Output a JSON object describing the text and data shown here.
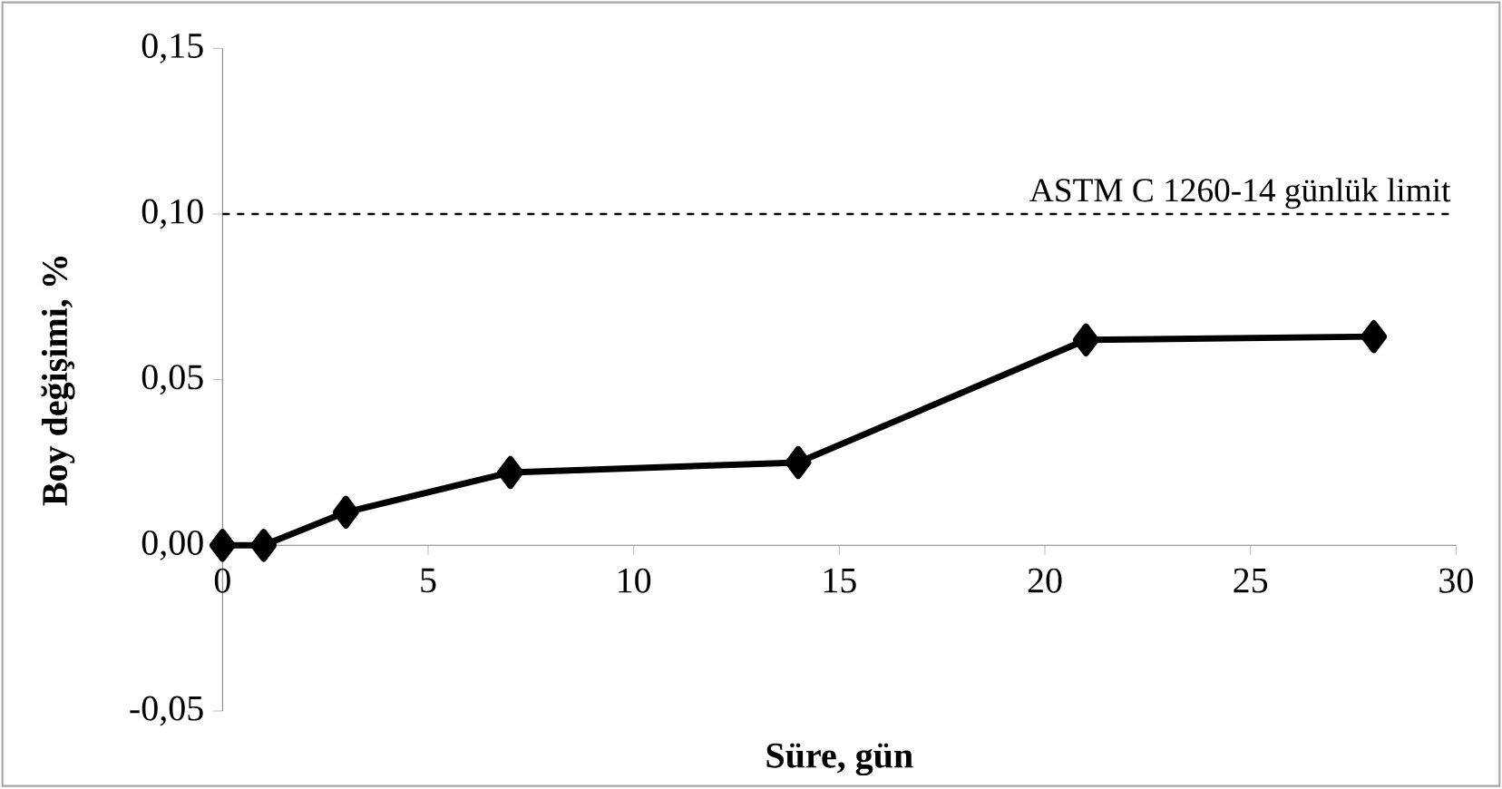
{
  "chart_data": {
    "type": "line",
    "xlabel": "Süre, gün",
    "ylabel": "Boy değişimi, %",
    "x": [
      0,
      1,
      3,
      7,
      14,
      21,
      28
    ],
    "series": [
      {
        "color": "#000000",
        "values": [
          0.0,
          0.0,
          0.01,
          0.022,
          0.025,
          0.062,
          0.063
        ]
      }
    ],
    "xlim": [
      0,
      30
    ],
    "xticks": [
      0,
      5,
      10,
      15,
      20,
      25,
      30
    ],
    "ylim": [
      -0.05,
      0.15
    ],
    "yticks": [
      {
        "value": -0.05,
        "label": "-0,05"
      },
      {
        "value": 0,
        "label": "0,00"
      },
      {
        "value": 0.05,
        "label": "0,05"
      },
      {
        "value": 0.1,
        "label": "0,10"
      },
      {
        "value": 0.15,
        "label": "0,15"
      }
    ],
    "ref_lines": [
      {
        "axis": "y",
        "value": 0.1,
        "label": "ASTM C 1260-14 günlük limit",
        "color": "#000000",
        "line_style": "dashed"
      }
    ],
    "marker": "diamond",
    "line_style": "solid",
    "grid": false
  }
}
